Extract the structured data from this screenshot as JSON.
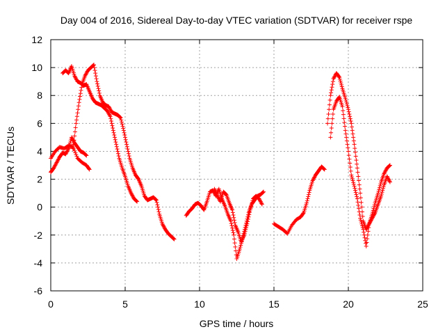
{
  "chart_data": {
    "type": "scatter",
    "title": "Day 004 of 2016, Sidereal Day-to-day VTEC variation (SDTVAR) for receiver rspe",
    "xlabel": "GPS time / hours",
    "ylabel": "SDTVAR / TECUs",
    "xlim": [
      0,
      25
    ],
    "ylim": [
      -6,
      12
    ],
    "xticks": [
      0,
      5,
      10,
      15,
      20,
      25
    ],
    "yticks": [
      -6,
      -4,
      -2,
      0,
      2,
      4,
      6,
      8,
      10,
      12
    ],
    "grid": true,
    "marker": "plus",
    "color": "#ff0000",
    "series": [
      {
        "x": [
          0.0,
          0.2,
          0.4,
          0.6,
          0.8,
          1.0,
          1.2,
          1.4,
          1.6,
          1.8,
          2.0,
          2.2,
          2.4
        ],
        "y": [
          2.5,
          2.8,
          3.2,
          3.6,
          3.9,
          3.8,
          4.2,
          5.0,
          4.6,
          4.3,
          4.0,
          3.9,
          3.7
        ]
      },
      {
        "x": [
          0.0,
          0.3,
          0.6,
          0.9,
          1.2,
          1.5,
          1.8,
          2.1,
          2.4,
          2.6
        ],
        "y": [
          3.5,
          4.0,
          4.3,
          4.2,
          4.4,
          4.3,
          3.5,
          3.2,
          3.0,
          2.7
        ]
      },
      {
        "x": [
          0.8,
          1.0,
          1.2,
          1.4,
          1.6,
          1.8,
          2.0,
          2.2,
          2.4,
          2.6,
          2.8,
          3.0,
          3.2,
          3.4,
          3.6,
          3.8,
          4.0,
          4.2,
          4.4,
          4.6,
          4.8,
          5.0,
          5.2,
          5.4,
          5.6,
          5.8
        ],
        "y": [
          9.6,
          9.8,
          9.6,
          10.1,
          9.4,
          9.0,
          8.9,
          8.7,
          8.8,
          8.3,
          7.8,
          7.5,
          7.4,
          7.3,
          7.1,
          6.9,
          6.5,
          5.5,
          4.5,
          3.5,
          2.8,
          2.2,
          1.5,
          1.0,
          0.6,
          0.4
        ]
      },
      {
        "x": [
          1.5,
          1.7,
          1.9,
          2.1,
          2.3,
          2.5,
          2.7,
          2.9,
          3.1,
          3.3,
          3.5,
          3.7,
          3.9,
          4.1,
          4.3,
          4.5,
          4.7,
          4.9,
          5.1,
          5.3,
          5.5,
          5.7,
          5.9,
          6.1,
          6.3,
          6.5,
          6.7,
          6.9,
          7.1,
          7.3,
          7.5,
          7.7,
          7.9,
          8.1,
          8.3
        ],
        "y": [
          4.2,
          6.0,
          7.5,
          8.8,
          9.4,
          9.8,
          10.0,
          10.2,
          9.0,
          8.0,
          7.5,
          7.3,
          7.2,
          6.8,
          6.7,
          6.6,
          6.4,
          5.5,
          4.5,
          3.5,
          2.8,
          2.3,
          2.0,
          1.5,
          0.8,
          0.5,
          0.6,
          0.7,
          0.5,
          -0.5,
          -1.2,
          -1.6,
          -1.9,
          -2.1,
          -2.3
        ]
      },
      {
        "x": [
          9.1,
          9.3,
          9.5,
          9.7,
          9.9,
          10.1,
          10.3,
          10.5,
          10.7,
          10.9,
          11.1,
          11.3,
          11.5,
          11.7,
          11.9,
          12.1,
          12.3,
          12.5,
          12.7,
          12.9,
          13.1,
          13.3,
          13.5,
          13.7,
          13.9,
          14.1,
          14.3
        ],
        "y": [
          -0.6,
          -0.3,
          -0.1,
          0.2,
          0.3,
          0.1,
          -0.2,
          0.4,
          1.1,
          1.2,
          0.8,
          1.3,
          0.6,
          0.1,
          -0.5,
          -1.0,
          -2.0,
          -3.7,
          -3.0,
          -2.2,
          -1.3,
          -0.4,
          0.2,
          0.5,
          0.8,
          0.9,
          1.1
        ]
      },
      {
        "x": [
          11.0,
          11.2,
          11.4,
          11.6,
          11.8,
          12.0,
          12.2,
          12.4,
          12.6,
          12.8,
          13.0,
          13.2,
          13.4,
          13.6,
          13.8,
          14.0,
          14.2
        ],
        "y": [
          1.3,
          0.8,
          0.4,
          1.1,
          0.9,
          0.3,
          -0.2,
          -1.3,
          -1.8,
          -2.5,
          -2.0,
          -1.2,
          -0.2,
          0.6,
          0.8,
          0.6,
          0.2
        ]
      },
      {
        "x": [
          15.0,
          15.3,
          15.6,
          15.9,
          16.2,
          16.5,
          16.8,
          17.0,
          17.2,
          17.4,
          17.6,
          17.8,
          18.0,
          18.2,
          18.4
        ],
        "y": [
          -1.2,
          -1.4,
          -1.6,
          -1.9,
          -1.3,
          -0.9,
          -0.7,
          -0.4,
          0.3,
          1.2,
          1.9,
          2.3,
          2.6,
          2.9,
          2.7
        ]
      },
      {
        "x": [
          18.6,
          18.8,
          19.0,
          19.2,
          19.4,
          19.6,
          19.8,
          20.0,
          20.2,
          20.4,
          20.6,
          20.8,
          21.0,
          21.2,
          21.4,
          21.6,
          21.8,
          22.0,
          22.2,
          22.4,
          22.6,
          22.8
        ],
        "y": [
          6.0,
          8.0,
          9.2,
          9.6,
          9.3,
          8.5,
          7.8,
          7.0,
          6.0,
          4.5,
          2.8,
          1.0,
          -1.0,
          -1.6,
          -1.2,
          -0.8,
          -0.4,
          0.2,
          0.8,
          1.6,
          2.2,
          1.8
        ]
      },
      {
        "x": [
          18.8,
          19.0,
          19.2,
          19.4,
          19.6,
          19.8,
          20.0,
          20.2,
          20.4,
          20.6,
          20.8,
          21.0,
          21.2,
          21.4,
          21.6,
          21.8,
          22.0,
          22.2,
          22.4,
          22.6,
          22.8
        ],
        "y": [
          5.0,
          7.0,
          7.6,
          7.9,
          7.2,
          5.5,
          4.0,
          2.3,
          1.5,
          0.6,
          -0.8,
          -1.6,
          -2.8,
          -1.2,
          -0.5,
          0.3,
          1.0,
          1.8,
          2.4,
          2.8,
          3.0
        ]
      }
    ]
  }
}
